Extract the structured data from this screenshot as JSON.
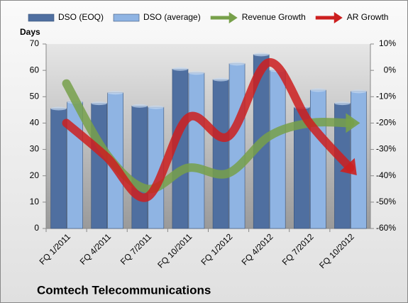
{
  "chart_data": {
    "type": "bar",
    "title": "Comtech Telecommunications",
    "y_axis_label": "Days",
    "categories": [
      "FQ 1/2011",
      "FQ 4/2011",
      "FQ 7/2011",
      "FQ 10/2011",
      "FQ 1/2012",
      "FQ 4/2012",
      "FQ 7/2012",
      "FQ 10/2012"
    ],
    "series": [
      {
        "name": "DSO (EOQ)",
        "color": "#4f6fa0",
        "values": [
          45.5,
          47.5,
          46.5,
          60.5,
          56.5,
          66,
          46,
          47.5
        ]
      },
      {
        "name": "DSO (average)",
        "color": "#8fb4e3",
        "values": [
          48,
          51.5,
          46,
          59,
          62.5,
          60,
          52.5,
          52
        ]
      },
      {
        "name": "Revenue Growth",
        "type": "line",
        "axis": "y2",
        "color": "#77a04a",
        "values": [
          -5,
          -32,
          -45,
          -37,
          -39,
          -25,
          -20,
          -20
        ]
      },
      {
        "name": "AR Growth",
        "type": "line",
        "axis": "y2",
        "color": "#cc1f1f",
        "values": [
          -20,
          -33,
          -48,
          -18,
          -25,
          3,
          -20,
          -37
        ]
      }
    ],
    "ylim": [
      0,
      70
    ],
    "yticks": [
      0,
      10,
      20,
      30,
      40,
      50,
      60,
      70
    ],
    "y2lim": [
      -60,
      10
    ],
    "y2ticks": [
      {
        "value": -60,
        "label": "-60%"
      },
      {
        "value": -50,
        "label": "-50%"
      },
      {
        "value": -40,
        "label": "-40%"
      },
      {
        "value": -30,
        "label": "-30%"
      },
      {
        "value": -20,
        "label": "-20%"
      },
      {
        "value": -10,
        "label": "-10%"
      },
      {
        "value": 0,
        "label": "0%"
      },
      {
        "value": 10,
        "label": "10%"
      }
    ],
    "grid": false
  }
}
